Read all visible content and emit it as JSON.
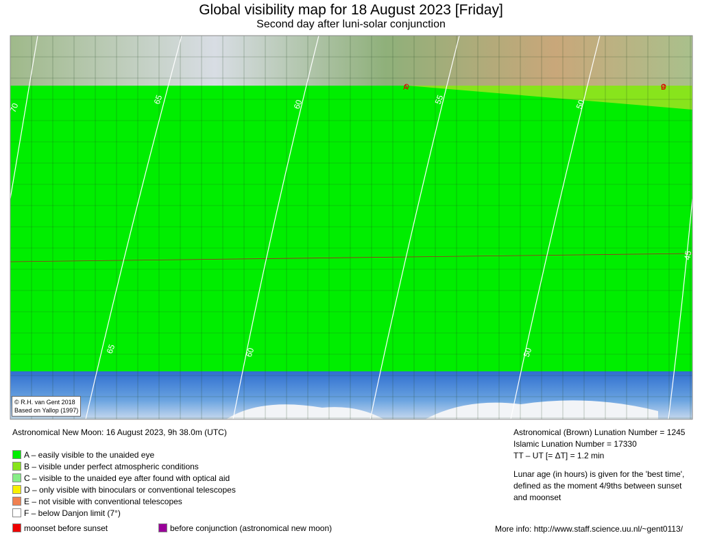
{
  "header": {
    "title": "Global visibility map for 18 August 2023 [Friday]",
    "subtitle": "Second day after luni-solar conjunction"
  },
  "map": {
    "contour_labels_top": [
      "70",
      "65",
      "60",
      "55",
      "50"
    ],
    "contour_label_right": "45",
    "contour_labels_bottom": [
      "65",
      "60",
      "50"
    ],
    "points": [
      "A",
      "B"
    ],
    "credit": [
      "© R.H. van Gent 2018",
      "Based on Yallop (1997)"
    ]
  },
  "info": {
    "new_moon": "Astronomical New Moon: 16 August 2023, 9h 38.0m (UTC)",
    "brown_lunation": "Astronomical (Brown) Lunation Number = 1245",
    "islamic_lunation": "Islamic Lunation Number = 17330",
    "delta_t": "TT – UT [= ΔT] = 1.2 min",
    "lunar_age": "Lunar age (in hours) is given for the 'best time', defined as the moment 4/9ths between sunset and moonset"
  },
  "legend": [
    {
      "label": "A – easily visible to the unaided eye",
      "color": "#00ee00"
    },
    {
      "label": "B – visible under perfect atmospheric conditions",
      "color": "#88e41c"
    },
    {
      "label": "C – visible to the unaided eye after found with optical aid",
      "color": "#88ee88"
    },
    {
      "label": "D – only visible with binoculars or conventional telescopes",
      "color": "#f8f000"
    },
    {
      "label": "E – not visible with conventional telescopes",
      "color": "#f08050"
    },
    {
      "label": "F – below Danjon limit (7°)",
      "color": "#ffffff"
    }
  ],
  "footer": {
    "moonset": {
      "label": "moonset before sunset",
      "color": "#ee0000"
    },
    "before_conjunction": {
      "label": "before conjunction (astronomical new moon)",
      "color": "#990099"
    },
    "more_info": "More info: http://www.staff.science.uu.nl/~gent0113/"
  }
}
